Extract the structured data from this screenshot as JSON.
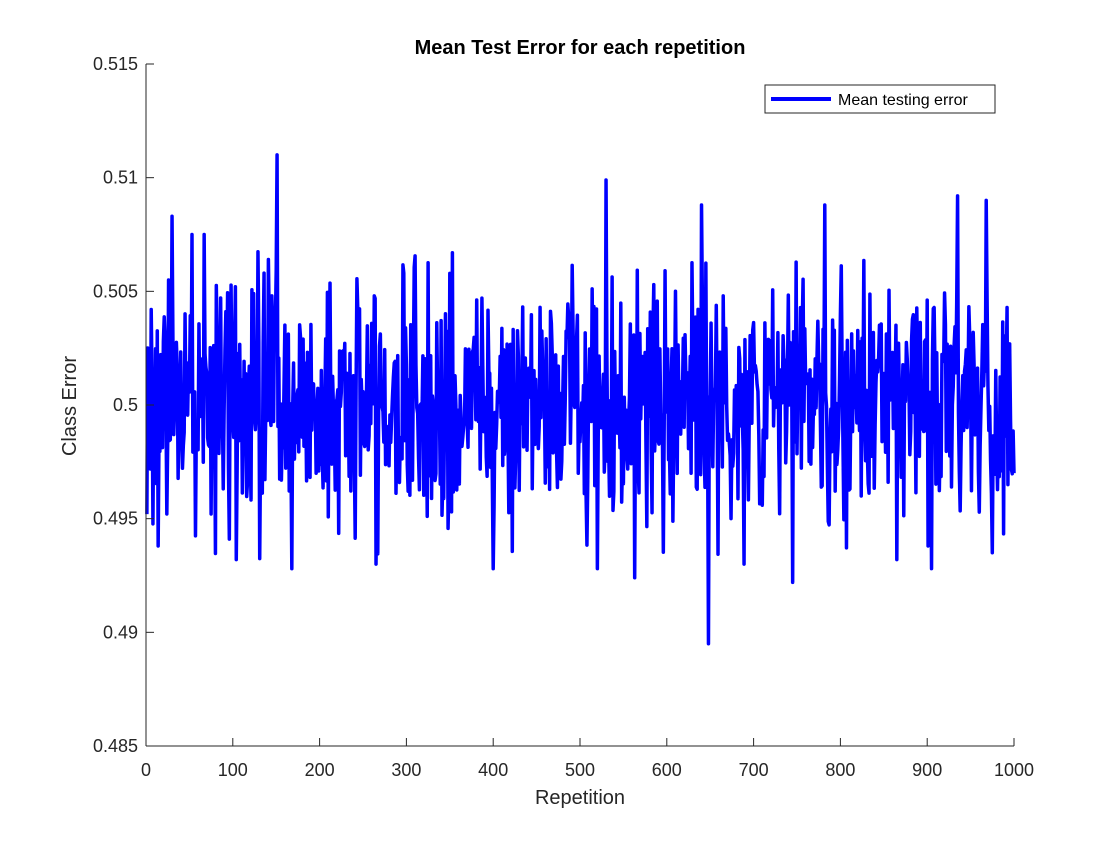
{
  "chart_data": {
    "type": "line",
    "title": "Mean Test Error for each repetition",
    "xlabel": "Repetition",
    "ylabel": "Class Error",
    "xlim": [
      0,
      1000
    ],
    "ylim": [
      0.485,
      0.515
    ],
    "xticks": [
      0,
      100,
      200,
      300,
      400,
      500,
      600,
      700,
      800,
      900,
      1000
    ],
    "xtick_labels": [
      "0",
      "100",
      "200",
      "300",
      "400",
      "500",
      "600",
      "700",
      "800",
      "900",
      "1000"
    ],
    "yticks": [
      0.485,
      0.49,
      0.495,
      0.5,
      0.505,
      0.51,
      0.515
    ],
    "ytick_labels": [
      "0.485",
      "0.49",
      "0.495",
      "0.5",
      "0.505",
      "0.51",
      "0.515"
    ],
    "grid": false,
    "legend_position": "top-right",
    "series": [
      {
        "name": "Mean testing error",
        "color": "#0000ff",
        "peaks": [
          [
            1,
            0.4952
          ],
          [
            6,
            0.5042
          ],
          [
            14,
            0.4938
          ],
          [
            26,
            0.5055
          ],
          [
            30,
            0.5083
          ],
          [
            53,
            0.5075
          ],
          [
            67,
            0.5075
          ],
          [
            103,
            0.5052
          ],
          [
            104,
            0.4932
          ],
          [
            135,
            0.5027
          ],
          [
            141,
            0.5064
          ],
          [
            151,
            0.511
          ],
          [
            168,
            0.4928
          ],
          [
            263,
            0.5048
          ],
          [
            265,
            0.493
          ],
          [
            294,
            0.4982
          ],
          [
            352,
            0.4953
          ],
          [
            353,
            0.5067
          ],
          [
            400,
            0.4928
          ],
          [
            520,
            0.4928
          ],
          [
            530,
            0.5099
          ],
          [
            563,
            0.4924
          ],
          [
            640,
            0.5088
          ],
          [
            648,
            0.4895
          ],
          [
            665,
            0.5048
          ],
          [
            689,
            0.493
          ],
          [
            745,
            0.4922
          ],
          [
            782,
            0.5088
          ],
          [
            865,
            0.4932
          ],
          [
            905,
            0.4928
          ],
          [
            935,
            0.5092
          ],
          [
            968,
            0.509
          ],
          [
            975,
            0.4935
          ],
          [
            1000,
            0.497
          ]
        ],
        "mean": 0.5,
        "std": 0.0027
      }
    ]
  }
}
